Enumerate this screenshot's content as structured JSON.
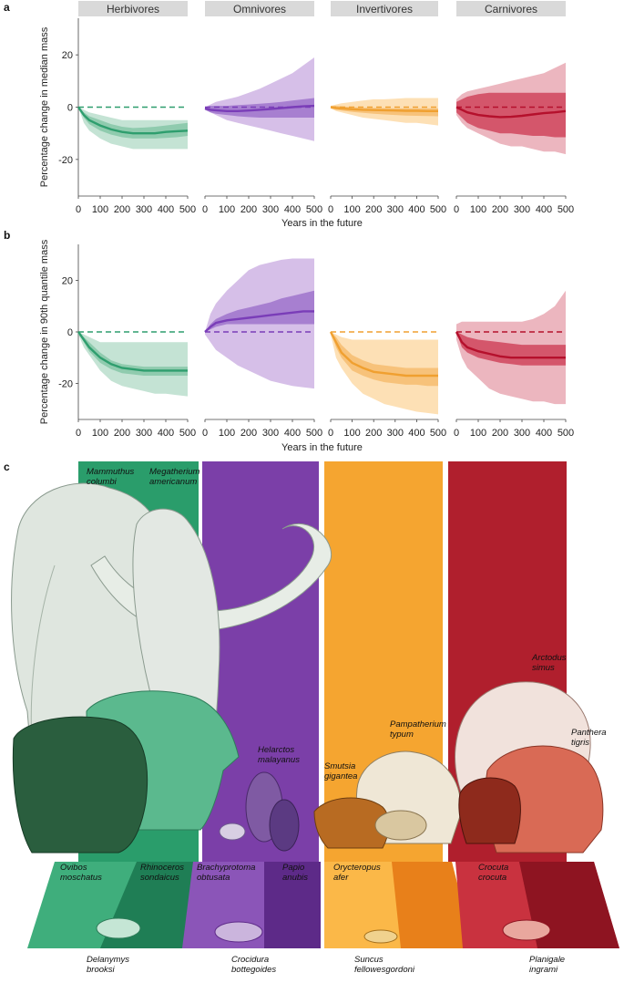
{
  "panel_letters": {
    "a": "a",
    "b": "b",
    "c": "c"
  },
  "chart_data": [
    {
      "panel": "a",
      "type": "line",
      "ylabel": "Percentage change in median mass",
      "xlabel": "Years in the future",
      "xlim": [
        0,
        500
      ],
      "ylim": [
        -34,
        34
      ],
      "xticks": [
        0,
        100,
        200,
        300,
        400,
        500
      ],
      "yticks": [
        20,
        0,
        -20
      ],
      "facets": [
        {
          "name": "Herbivores",
          "color": "#2e9e6e",
          "light": "#c4e3d4",
          "mid": "#8fcbae",
          "x": [
            0,
            25,
            50,
            100,
            150,
            200,
            250,
            300,
            350,
            400,
            450,
            500
          ],
          "median": [
            0,
            -3,
            -5,
            -7,
            -8.5,
            -9.5,
            -10,
            -10,
            -10,
            -9.5,
            -9.2,
            -9
          ],
          "inner_upper": [
            0,
            -2,
            -3.5,
            -5,
            -6.5,
            -7.5,
            -8,
            -7.8,
            -7.5,
            -7,
            -6.5,
            -6
          ],
          "inner_lower": [
            0,
            -4,
            -6.5,
            -9,
            -10.5,
            -11.5,
            -12,
            -12,
            -12,
            -11.8,
            -11.5,
            -11
          ],
          "outer_upper": [
            0,
            -1,
            -2,
            -3,
            -4,
            -5,
            -5,
            -5,
            -5,
            -5,
            -5,
            -5
          ],
          "outer_lower": [
            0,
            -6,
            -9,
            -12,
            -14,
            -15,
            -16,
            -16,
            -16,
            -16,
            -16,
            -16
          ]
        },
        {
          "name": "Omnivores",
          "color": "#7a3db8",
          "light": "#d6bfe8",
          "mid": "#a77fd0",
          "x": [
            0,
            25,
            50,
            100,
            150,
            200,
            250,
            300,
            350,
            400,
            450,
            500
          ],
          "median": [
            -0.5,
            -1,
            -1.2,
            -1.5,
            -1.5,
            -1.3,
            -1,
            -0.7,
            -0.4,
            0,
            0.3,
            0.5
          ],
          "inner_upper": [
            0,
            0.5,
            0.5,
            0.5,
            0.8,
            1,
            1.3,
            1.6,
            2,
            2.5,
            3,
            3.5
          ],
          "inner_lower": [
            -1,
            -2,
            -2.5,
            -3,
            -3.5,
            -3.8,
            -4,
            -4,
            -4,
            -4,
            -4,
            -4
          ],
          "outer_upper": [
            0,
            1,
            2,
            3,
            4,
            5.5,
            7,
            9,
            11,
            13,
            16,
            19
          ],
          "outer_lower": [
            -1,
            -2,
            -3,
            -5,
            -6,
            -7,
            -8,
            -9,
            -10,
            -11,
            -12,
            -13
          ]
        },
        {
          "name": "Invertivores",
          "color": "#f0a030",
          "light": "#fde0b5",
          "mid": "#f7c27a",
          "x": [
            0,
            25,
            50,
            100,
            150,
            200,
            250,
            300,
            350,
            400,
            450,
            500
          ],
          "median": [
            0,
            -0.3,
            -0.5,
            -0.8,
            -1,
            -1.1,
            -1.2,
            -1.3,
            -1.4,
            -1.4,
            -1.5,
            -1.5
          ],
          "inner_upper": [
            0.5,
            0.5,
            0.3,
            0,
            -0.2,
            -0.3,
            -0.4,
            -0.5,
            -0.5,
            -0.5,
            -0.5,
            -0.5
          ],
          "inner_lower": [
            -0.5,
            -1,
            -1.3,
            -1.8,
            -2.2,
            -2.5,
            -2.8,
            -3,
            -3.2,
            -3.3,
            -3.4,
            -3.5
          ],
          "outer_upper": [
            0.5,
            1,
            1.5,
            2,
            2.5,
            3,
            3,
            3.2,
            3.5,
            3.5,
            3.5,
            3.5
          ],
          "outer_lower": [
            -0.5,
            -1.5,
            -2,
            -3,
            -4,
            -4.5,
            -5,
            -5.5,
            -6,
            -6,
            -6.5,
            -7
          ]
        },
        {
          "name": "Carnivores",
          "color": "#b5102c",
          "light": "#ecb6bf",
          "mid": "#d4566b",
          "x": [
            0,
            25,
            50,
            100,
            150,
            200,
            250,
            300,
            350,
            400,
            450,
            500
          ],
          "median": [
            0,
            -1,
            -2,
            -3,
            -3.5,
            -3.8,
            -3.7,
            -3.3,
            -2.8,
            -2.3,
            -2,
            -1.5
          ],
          "inner_upper": [
            2,
            3,
            4,
            5,
            5.5,
            5.5,
            5.5,
            5.5,
            5.5,
            5.5,
            5.5,
            5.5
          ],
          "inner_lower": [
            -2,
            -4,
            -6,
            -8,
            -9,
            -10,
            -10,
            -10.5,
            -11,
            -11,
            -11.5,
            -11.5
          ],
          "outer_upper": [
            3,
            5,
            6,
            7,
            8,
            9,
            10,
            11,
            12,
            13,
            15,
            17
          ],
          "outer_lower": [
            -3,
            -6,
            -8,
            -10,
            -12,
            -14,
            -15,
            -15,
            -16,
            -17,
            -17,
            -18
          ]
        }
      ]
    },
    {
      "panel": "b",
      "type": "line",
      "ylabel": "Percentage change in 90th quantile mass",
      "xlabel": "Years in the future",
      "xlim": [
        0,
        500
      ],
      "ylim": [
        -34,
        34
      ],
      "xticks": [
        0,
        100,
        200,
        300,
        400,
        500
      ],
      "yticks": [
        20,
        0,
        -20
      ],
      "facets": [
        {
          "name": "Herbivores",
          "color": "#2e9e6e",
          "light": "#c4e3d4",
          "mid": "#8fcbae",
          "x": [
            0,
            25,
            50,
            100,
            150,
            200,
            250,
            300,
            350,
            400,
            450,
            500
          ],
          "median": [
            0,
            -3,
            -6,
            -10,
            -12.5,
            -14,
            -14.5,
            -15,
            -15,
            -15,
            -15,
            -15
          ],
          "inner_upper": [
            0,
            -2,
            -4,
            -8,
            -11,
            -12.5,
            -13,
            -13.5,
            -13.5,
            -13.5,
            -13.5,
            -13.5
          ],
          "inner_lower": [
            0,
            -4,
            -7.5,
            -12,
            -14.5,
            -16,
            -16.5,
            -17,
            -17,
            -17,
            -17,
            -17
          ],
          "outer_upper": [
            0,
            -1,
            -2,
            -4,
            -4,
            -4,
            -4,
            -4,
            -4,
            -4,
            -4,
            -4
          ],
          "outer_lower": [
            -1,
            -6,
            -9,
            -15,
            -19,
            -21,
            -22,
            -23,
            -24,
            -24,
            -24.5,
            -25
          ]
        },
        {
          "name": "Omnivores",
          "color": "#7a3db8",
          "light": "#d6bfe8",
          "mid": "#a77fd0",
          "x": [
            0,
            25,
            50,
            100,
            150,
            200,
            250,
            300,
            350,
            400,
            450,
            500
          ],
          "median": [
            0,
            2,
            3.5,
            4.5,
            5,
            5.5,
            6,
            6.5,
            7,
            7.5,
            8,
            8
          ],
          "inner_upper": [
            0,
            3,
            5,
            7,
            8.5,
            9.5,
            10.5,
            11.5,
            13,
            14,
            15,
            16
          ],
          "inner_lower": [
            0,
            1,
            2,
            3,
            3,
            3,
            3,
            3,
            3,
            3,
            3,
            3
          ],
          "outer_upper": [
            0,
            7,
            11,
            16,
            20,
            24,
            26,
            27,
            28,
            28.5,
            28.5,
            28.5
          ],
          "outer_lower": [
            -1,
            -4,
            -7,
            -10,
            -13,
            -15,
            -17,
            -19,
            -20,
            -21,
            -21.5,
            -22
          ]
        },
        {
          "name": "Invertivores",
          "color": "#f0a030",
          "light": "#fde0b5",
          "mid": "#f7c27a",
          "x": [
            0,
            25,
            50,
            100,
            150,
            200,
            250,
            300,
            350,
            400,
            450,
            500
          ],
          "median": [
            0,
            -4,
            -8,
            -12,
            -14,
            -15.5,
            -16,
            -16.5,
            -17,
            -17,
            -17,
            -17
          ],
          "inner_upper": [
            0,
            -2,
            -5,
            -9,
            -11,
            -12.5,
            -13,
            -13.5,
            -14,
            -14,
            -14,
            -14
          ],
          "inner_lower": [
            0,
            -6,
            -10,
            -15,
            -17,
            -18.5,
            -19.5,
            -20,
            -20.5,
            -20.5,
            -21,
            -21
          ],
          "outer_upper": [
            0,
            -1,
            -2,
            -3,
            -3,
            -3,
            -3,
            -3,
            -3,
            -3,
            -3,
            -3
          ],
          "outer_lower": [
            -1,
            -10,
            -14,
            -20,
            -24,
            -26,
            -28,
            -29,
            -30,
            -31,
            -31.5,
            -32
          ]
        },
        {
          "name": "Carnivores",
          "color": "#b5102c",
          "light": "#ecb6bf",
          "mid": "#d4566b",
          "x": [
            0,
            25,
            50,
            100,
            150,
            200,
            250,
            300,
            350,
            400,
            450,
            500
          ],
          "median": [
            0,
            -4,
            -6,
            -7.5,
            -8.5,
            -9.5,
            -10,
            -10,
            -10,
            -10,
            -10,
            -10
          ],
          "inner_upper": [
            0,
            -1,
            -2,
            -3,
            -3.5,
            -4,
            -4.5,
            -5,
            -5,
            -5,
            -5,
            -5
          ],
          "inner_lower": [
            0,
            -6,
            -8,
            -10,
            -11,
            -12,
            -12.5,
            -13,
            -13,
            -13,
            -13,
            -13
          ],
          "outer_upper": [
            3,
            4,
            4,
            4,
            4,
            4,
            4,
            4,
            5,
            7,
            10,
            16
          ],
          "outer_lower": [
            -3,
            -10,
            -14,
            -18,
            -22,
            -24,
            -25,
            -26,
            -27,
            -27,
            -28,
            -28
          ]
        }
      ]
    }
  ],
  "species": {
    "mammuthus": "Mammuthus\ncolumbi",
    "megatherium": "Megatherium\namericanum",
    "helarctos": "Helarctos\nmalayanus",
    "smutsia": "Smutsia\ngigantea",
    "pampatherium": "Pampatherium\ntypum",
    "arctodus": "Arctodus\nsimus",
    "panthera": "Panthera\ntigris",
    "ovibos": "Ovibos\nmoschatus",
    "rhinoceros": "Rhinoceros\nsondaicus",
    "brachyprotoma": "Brachyprotoma\nobtusata",
    "papio": "Papio\nanubis",
    "orycteropus": "Orycteropus\nafer",
    "crocuta": "Crocuta\ncrocuta",
    "delanymys": "Delanymys\nbrooksi",
    "crocidura": "Crocidura\nbottegoides",
    "suncus": "Suncus\nfellowesgordoni",
    "planigale": "Planigale\ningrami"
  }
}
